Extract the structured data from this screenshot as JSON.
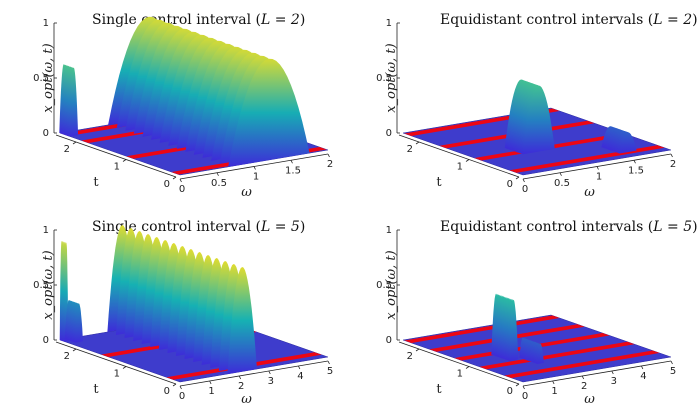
{
  "chart_data": [
    {
      "type": "surface",
      "title": "Single control interval (L = 2)",
      "title_text": "Single control interval (",
      "title_var": "L = 2",
      "zlabel": "x_opt(ω, t)",
      "xlabel": "ω",
      "ylabel": "t",
      "xlim": [
        0,
        2
      ],
      "ylim": [
        0,
        2.4
      ],
      "zlim": [
        0,
        1
      ],
      "xticks": [
        "0",
        "0.5",
        "1",
        "1.5",
        "2"
      ],
      "yticks": [
        "0",
        "1",
        "2"
      ],
      "zticks": [
        "0",
        "0.5",
        "1"
      ],
      "control_rows_t": [
        0.1,
        1.0,
        1.9,
        2.3
      ],
      "peaks": [
        {
          "omega": 0.05,
          "t": 2.2,
          "height": 0.62,
          "width": 0.06
        },
        {
          "omega": 1.2,
          "t": 0.0,
          "height": 0.92,
          "width": 0.55
        }
      ]
    },
    {
      "type": "surface",
      "title": "Equidistant control intervals (L = 2)",
      "title_text": "Equidistant control intervals (",
      "title_var": "L = 2",
      "zlabel": "x_opt(ω, t)",
      "xlabel": "ω",
      "ylabel": "t",
      "xlim": [
        0,
        2
      ],
      "ylim": [
        0,
        2.4
      ],
      "zlim": [
        0,
        1
      ],
      "xticks": [
        "0",
        "0.5",
        "1",
        "1.5",
        "2"
      ],
      "yticks": [
        "0",
        "1",
        "2"
      ],
      "zticks": [
        "0",
        "0.5",
        "1"
      ],
      "control_rows_t": [
        0.2,
        0.9,
        1.6,
        2.3
      ],
      "peaks": [
        {
          "omega": 0.75,
          "t": 0.8,
          "height": 0.6,
          "width": 0.22
        },
        {
          "omega": 1.55,
          "t": 0.2,
          "height": 0.18,
          "width": 0.12
        }
      ]
    },
    {
      "type": "surface",
      "title": "Single control interval (L = 5)",
      "title_text": "Single control interval (",
      "title_var": "L = 5",
      "zlabel": "x_opt(ω, t)",
      "xlabel": "ω",
      "ylabel": "t",
      "xlim": [
        0,
        5
      ],
      "ylim": [
        0,
        2.4
      ],
      "zlim": [
        0,
        1
      ],
      "xticks": [
        "0",
        "1",
        "2",
        "3",
        "4",
        "5"
      ],
      "yticks": [
        "0",
        "1",
        "2"
      ],
      "zticks": [
        "0",
        "0.5",
        "1"
      ],
      "control_rows_t": [
        1.5,
        0.2
      ],
      "peaks": [
        {
          "omega": 0.05,
          "t": 2.3,
          "height": 0.9,
          "width": 0.06
        },
        {
          "omega": 0.3,
          "t": 2.2,
          "height": 0.35,
          "width": 0.14
        },
        {
          "omega": 2.1,
          "t": 0.0,
          "height": 0.95,
          "width": 0.5
        }
      ]
    },
    {
      "type": "surface",
      "title": "Equidistant control intervals (L = 5)",
      "title_text": "Equidistant control intervals (",
      "title_var": "L = 5",
      "zlabel": "x_opt(ω, t)",
      "xlabel": "ω",
      "ylabel": "t",
      "xlim": [
        0,
        5
      ],
      "ylim": [
        0,
        2.4
      ],
      "zlim": [
        0,
        1
      ],
      "xticks": [
        "0",
        "1",
        "2",
        "3",
        "4",
        "5"
      ],
      "yticks": [
        "0",
        "1",
        "2"
      ],
      "zticks": [
        "0",
        "0.5",
        "1"
      ],
      "control_rows_t": [
        0.3,
        0.8,
        1.3,
        1.8,
        2.3
      ],
      "peaks": [
        {
          "omega": 1.2,
          "t": 0.9,
          "height": 0.55,
          "width": 0.16
        },
        {
          "omega": 1.6,
          "t": 0.6,
          "height": 0.18,
          "width": 0.12
        }
      ]
    }
  ],
  "colors": {
    "floor": "#3e3ccc",
    "control": "#ff0000",
    "low": "#3d2bd8",
    "mid": "#14b8b1",
    "high": "#f7e020",
    "axis": "#222222"
  }
}
